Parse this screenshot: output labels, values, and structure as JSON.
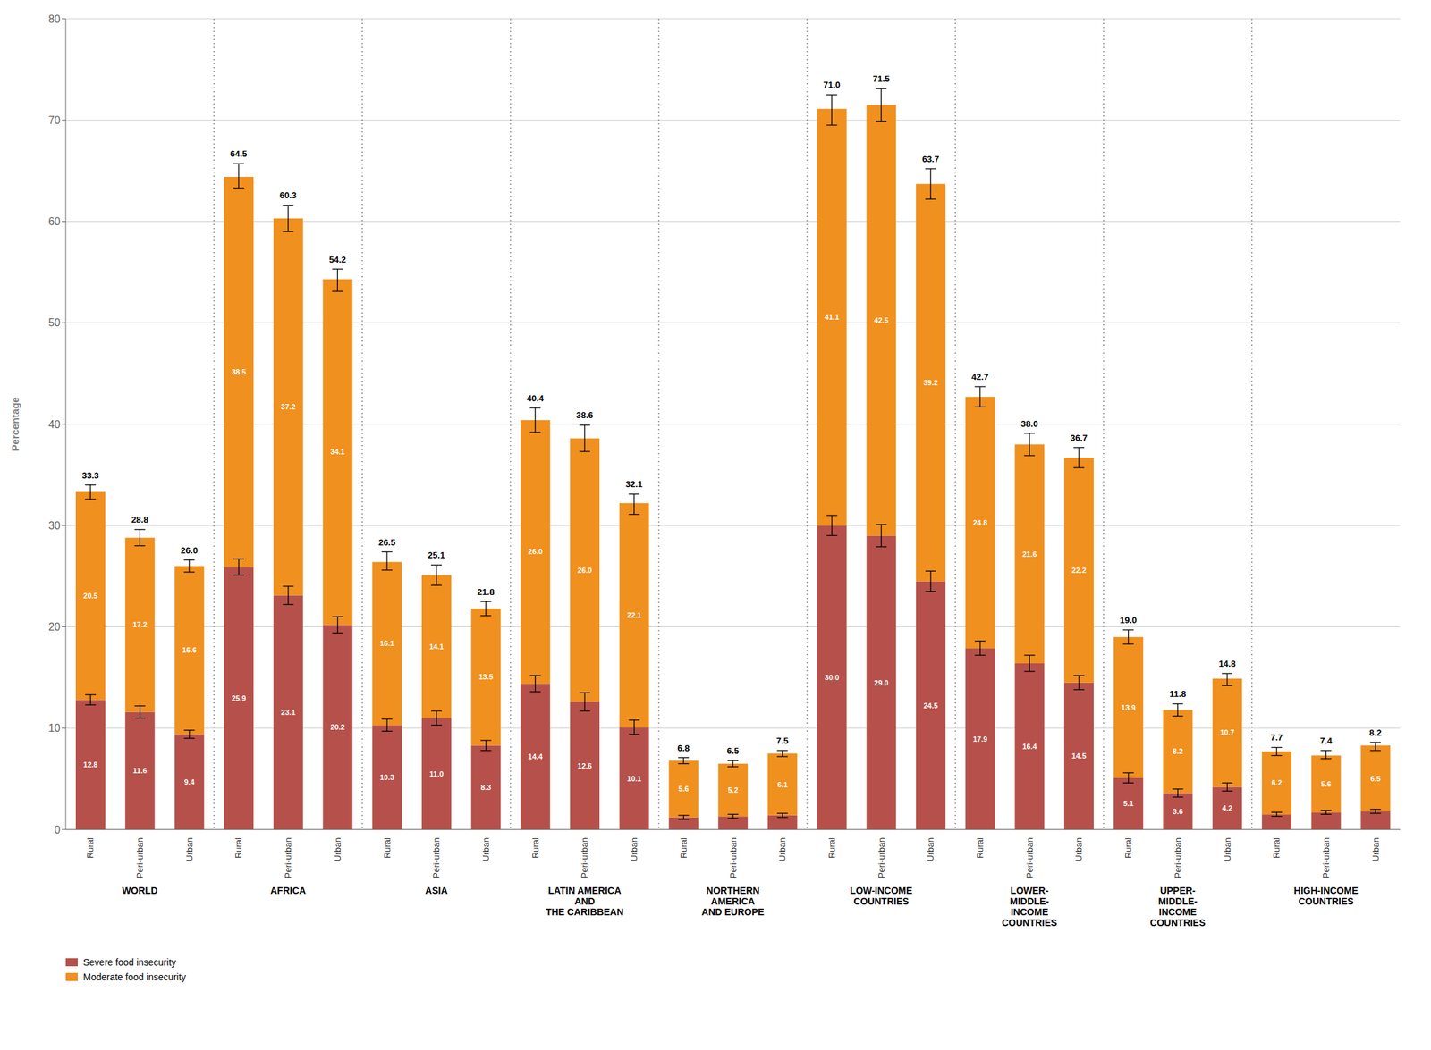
{
  "chart_data": {
    "type": "bar",
    "stacked": true,
    "ylabel": "Percentage",
    "ylim": [
      0,
      80
    ],
    "yticks": [
      0,
      10,
      20,
      30,
      40,
      50,
      60,
      70,
      80
    ],
    "grid": true,
    "legend": "lower left",
    "data_labels": true,
    "categories": [
      "Rural",
      "Peri-urban",
      "Urban",
      "Rural",
      "Peri-urban",
      "Urban",
      "Rural",
      "Peri-urban",
      "Urban",
      "Rural",
      "Peri-urban",
      "Urban",
      "Rural",
      "Peri-urban",
      "Urban",
      "Rural",
      "Peri-urban",
      "Urban",
      "Rural",
      "Peri-urban",
      "Urban",
      "Rural",
      "Peri-urban",
      "Urban",
      "Rural",
      "Peri-urban",
      "Urban"
    ],
    "groups": [
      "WORLD",
      "AFRICA",
      "ASIA",
      "LATIN AMERICA\nAND\nTHE CARIBBEAN",
      "NORTHERN\nAMERICA\nAND EUROPE",
      "LOW-INCOME\nCOUNTRIES",
      "LOWER-\nMIDDLE-\nINCOME\nCOUNTRIES",
      "UPPER-\nMIDDLE-\nINCOME\nCOUNTRIES",
      "HIGH-INCOME\nCOUNTRIES"
    ],
    "series": [
      {
        "name": "Severe food insecurity",
        "color": "#b5514a",
        "values": [
          12.8,
          11.6,
          9.4,
          25.9,
          23.1,
          20.2,
          10.3,
          11.0,
          8.3,
          14.4,
          12.6,
          10.1,
          1.2,
          1.3,
          1.4,
          30.0,
          29.0,
          24.5,
          17.9,
          16.4,
          14.5,
          5.1,
          3.6,
          4.2,
          1.5,
          1.7,
          1.8
        ],
        "value_labels": [
          "12.8",
          "11.6",
          "9.4",
          "25.9",
          "23.1",
          "20.2",
          "10.3",
          "11.0",
          "8.3",
          "14.4",
          "12.6",
          "10.1",
          null,
          null,
          null,
          "30.0",
          "29.0",
          "24.5",
          "17.9",
          "16.4",
          "14.5",
          "5.1",
          "3.6",
          "4.2",
          null,
          null,
          null
        ],
        "errors": [
          0.5,
          0.6,
          0.4,
          0.8,
          0.9,
          0.8,
          0.6,
          0.7,
          0.5,
          0.8,
          0.9,
          0.7,
          0.2,
          0.2,
          0.2,
          1.0,
          1.1,
          1.0,
          0.7,
          0.8,
          0.7,
          0.5,
          0.4,
          0.4,
          0.2,
          0.2,
          0.2
        ]
      },
      {
        "name": "Moderate food insecurity",
        "color": "#f0901e",
        "values": [
          20.5,
          17.2,
          16.6,
          38.5,
          37.2,
          34.1,
          16.1,
          14.1,
          13.5,
          26.0,
          26.0,
          22.1,
          5.6,
          5.2,
          6.1,
          41.1,
          42.5,
          39.2,
          24.8,
          21.6,
          22.2,
          13.9,
          8.2,
          10.7,
          6.2,
          5.6,
          6.5
        ],
        "value_labels": [
          "20.5",
          "17.2",
          "16.6",
          "38.5",
          "37.2",
          "34.1",
          "16.1",
          "14.1",
          "13.5",
          "26.0",
          "26.0",
          "22.1",
          "5.6",
          "5.2",
          "6.1",
          "41.1",
          "42.5",
          "39.2",
          "24.8",
          "21.6",
          "22.2",
          "13.9",
          "8.2",
          "10.7",
          "6.2",
          "5.6",
          "6.5"
        ]
      }
    ],
    "totals": {
      "values": [
        33.3,
        28.8,
        26.0,
        64.5,
        60.3,
        54.2,
        26.5,
        25.1,
        21.8,
        40.4,
        38.6,
        32.1,
        6.8,
        6.5,
        7.5,
        71.0,
        71.5,
        63.7,
        42.7,
        38.0,
        36.7,
        19.0,
        11.8,
        14.8,
        7.7,
        7.4,
        8.2
      ],
      "value_labels": [
        "33.3",
        "28.8",
        "26.0",
        "64.5",
        "60.3",
        "54.2",
        "26.5",
        "25.1",
        "21.8",
        "40.4",
        "38.6",
        "32.1",
        "6.8",
        "6.5",
        "7.5",
        "71.0",
        "71.5",
        "63.7",
        "42.7",
        "38.0",
        "36.7",
        "19.0",
        "11.8",
        "14.8",
        "7.7",
        "7.4",
        "8.2"
      ],
      "errors": [
        0.7,
        0.8,
        0.6,
        1.2,
        1.3,
        1.1,
        0.9,
        1.0,
        0.7,
        1.2,
        1.3,
        1.0,
        0.3,
        0.3,
        0.3,
        1.5,
        1.6,
        1.5,
        1.0,
        1.1,
        1.0,
        0.7,
        0.6,
        0.6,
        0.4,
        0.4,
        0.4
      ]
    }
  }
}
